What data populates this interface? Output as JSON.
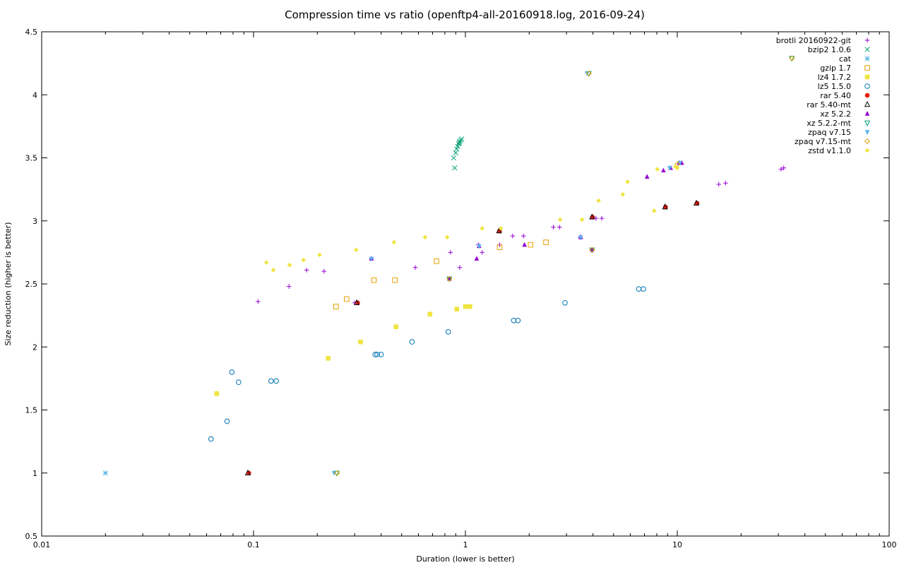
{
  "chart_data": {
    "type": "scatter",
    "title": "Compression time vs ratio (openftp4-all-20160918.log, 2016-09-24)",
    "xlabel": "Duration (lower is better)",
    "ylabel": "Size reduction (higher is better)",
    "x_scale": "log",
    "xlim": [
      0.01,
      100
    ],
    "ylim": [
      0.5,
      4.5
    ],
    "x_ticks": [
      {
        "value": 0.01,
        "label": "0.01"
      },
      {
        "value": 0.1,
        "label": "0.1"
      },
      {
        "value": 1,
        "label": "1"
      },
      {
        "value": 10,
        "label": "10"
      },
      {
        "value": 100,
        "label": "100"
      }
    ],
    "y_ticks": [
      {
        "value": 0.5,
        "label": "0.5"
      },
      {
        "value": 1,
        "label": "1"
      },
      {
        "value": 1.5,
        "label": "1.5"
      },
      {
        "value": 2,
        "label": "2"
      },
      {
        "value": 2.5,
        "label": "2.5"
      },
      {
        "value": 3,
        "label": "3"
      },
      {
        "value": 3.5,
        "label": "3.5"
      },
      {
        "value": 4,
        "label": "4"
      },
      {
        "value": 4.5,
        "label": "4.5"
      }
    ],
    "grid": false,
    "legend_position": "top-right",
    "series": [
      {
        "name": "brotli 20160922-git",
        "marker": "plus",
        "color": "#9400d3",
        "points": [
          [
            0.105,
            2.36
          ],
          [
            0.147,
            2.48
          ],
          [
            0.178,
            2.61
          ],
          [
            0.215,
            2.6
          ],
          [
            0.3,
            2.35
          ],
          [
            0.58,
            2.63
          ],
          [
            0.85,
            2.75
          ],
          [
            0.94,
            2.63
          ],
          [
            1.2,
            2.75
          ],
          [
            1.45,
            2.81
          ],
          [
            1.67,
            2.88
          ],
          [
            1.88,
            2.88
          ],
          [
            2.6,
            2.95
          ],
          [
            2.78,
            2.95
          ],
          [
            4.13,
            3.02
          ],
          [
            4.4,
            3.02
          ],
          [
            15.7,
            3.29
          ],
          [
            16.9,
            3.3
          ],
          [
            30.9,
            3.41
          ],
          [
            31.8,
            3.42
          ],
          [
            0.36,
            2.7
          ],
          [
            1.15,
            2.81
          ],
          [
            3.48,
            2.87
          ]
        ]
      },
      {
        "name": "bzip2 1.0.6",
        "marker": "x",
        "color": "#009e73",
        "points": [
          [
            0.89,
            3.42
          ],
          [
            0.88,
            3.5
          ],
          [
            0.9,
            3.54
          ],
          [
            0.91,
            3.57
          ],
          [
            0.92,
            3.59
          ],
          [
            0.93,
            3.61
          ],
          [
            0.935,
            3.62
          ],
          [
            0.94,
            3.63
          ],
          [
            0.95,
            3.64
          ],
          [
            0.96,
            3.65
          ]
        ]
      },
      {
        "name": "cat",
        "marker": "asterisk",
        "color": "#56b4e9",
        "points": [
          [
            0.02,
            1.0
          ]
        ]
      },
      {
        "name": "gzip 1.7",
        "marker": "open-square",
        "color": "#e69f00",
        "points": [
          [
            0.245,
            2.32
          ],
          [
            0.275,
            2.38
          ],
          [
            0.37,
            2.53
          ],
          [
            0.465,
            2.53
          ],
          [
            0.73,
            2.68
          ],
          [
            1.45,
            2.79
          ],
          [
            2.03,
            2.81
          ],
          [
            2.4,
            2.83
          ]
        ]
      },
      {
        "name": "lz4 1.7.2",
        "marker": "filled-square",
        "color": "#f0e442",
        "points": [
          [
            0.067,
            1.63
          ],
          [
            0.225,
            1.91
          ],
          [
            0.32,
            2.04
          ],
          [
            0.47,
            2.16
          ],
          [
            0.68,
            2.26
          ],
          [
            0.91,
            2.3
          ],
          [
            1.0,
            2.32
          ],
          [
            1.05,
            2.32
          ]
        ]
      },
      {
        "name": "lz5 1.5.0",
        "marker": "open-circle",
        "color": "#0072b2",
        "points": [
          [
            0.063,
            1.27
          ],
          [
            0.075,
            1.41
          ],
          [
            0.079,
            1.8
          ],
          [
            0.085,
            1.72
          ],
          [
            0.121,
            1.73
          ],
          [
            0.128,
            1.73
          ],
          [
            0.375,
            1.94
          ],
          [
            0.383,
            1.94
          ],
          [
            0.4,
            1.94
          ],
          [
            0.56,
            2.04
          ],
          [
            0.83,
            2.12
          ],
          [
            1.69,
            2.21
          ],
          [
            1.77,
            2.21
          ],
          [
            2.95,
            2.35
          ],
          [
            6.58,
            2.46
          ],
          [
            6.92,
            2.46
          ]
        ]
      },
      {
        "name": "rar 5.40",
        "marker": "filled-circle",
        "color": "#e51e10",
        "points": [
          [
            0.095,
            1.0
          ],
          [
            0.31,
            2.35
          ],
          [
            1.45,
            2.92
          ],
          [
            3.98,
            3.03
          ],
          [
            8.8,
            3.11
          ],
          [
            12.4,
            3.14
          ]
        ]
      },
      {
        "name": "rar 5.40-mt",
        "marker": "open-triangle",
        "color": "#000000",
        "points": [
          [
            0.094,
            1.0
          ],
          [
            0.307,
            2.35
          ],
          [
            1.44,
            2.92
          ],
          [
            3.96,
            3.03
          ],
          [
            8.75,
            3.11
          ],
          [
            12.3,
            3.14
          ]
        ]
      },
      {
        "name": "xz 5.2.2",
        "marker": "filled-triangle",
        "color": "#9400d3",
        "points": [
          [
            0.36,
            2.7
          ],
          [
            0.84,
            2.54
          ],
          [
            1.13,
            2.7
          ],
          [
            1.16,
            2.8
          ],
          [
            1.9,
            2.81
          ],
          [
            3.5,
            2.87
          ],
          [
            3.96,
            2.77
          ],
          [
            7.2,
            3.35
          ],
          [
            8.6,
            3.4
          ],
          [
            9.3,
            3.42
          ],
          [
            10.2,
            3.46
          ],
          [
            10.5,
            3.46
          ]
        ]
      },
      {
        "name": "xz 5.2.2-mt",
        "marker": "open-down-triangle",
        "color": "#009e73",
        "points": [
          [
            0.247,
            1.0
          ],
          [
            0.84,
            2.54
          ],
          [
            3.96,
            2.77
          ],
          [
            3.82,
            4.17
          ],
          [
            34.7,
            4.29
          ]
        ]
      },
      {
        "name": "zpaq v7.15",
        "marker": "filled-down-triangle",
        "color": "#56b4e9",
        "points": [
          [
            0.24,
            1.0
          ],
          [
            0.36,
            2.7
          ],
          [
            1.16,
            2.8
          ],
          [
            3.5,
            2.87
          ],
          [
            3.75,
            4.17
          ],
          [
            10.3,
            3.46
          ],
          [
            9.2,
            3.42
          ]
        ]
      },
      {
        "name": "zpaq v7.15-mt",
        "marker": "open-diamond",
        "color": "#e69f00",
        "points": [
          [
            0.248,
            1.0
          ],
          [
            0.84,
            2.54
          ],
          [
            3.96,
            2.77
          ],
          [
            3.83,
            4.17
          ],
          [
            34.8,
            4.29
          ],
          [
            10.0,
            3.45
          ]
        ]
      },
      {
        "name": "zstd v1.1.0",
        "marker": "filled-diamond",
        "color": "#f0e442",
        "points": [
          [
            0.115,
            2.67
          ],
          [
            0.124,
            2.61
          ],
          [
            0.148,
            2.65
          ],
          [
            0.172,
            2.69
          ],
          [
            0.205,
            2.73
          ],
          [
            0.305,
            2.77
          ],
          [
            0.46,
            2.83
          ],
          [
            0.645,
            2.87
          ],
          [
            0.82,
            2.87
          ],
          [
            1.2,
            2.94
          ],
          [
            1.47,
            2.94
          ],
          [
            2.8,
            3.01
          ],
          [
            3.55,
            3.01
          ],
          [
            4.25,
            3.16
          ],
          [
            5.53,
            3.21
          ],
          [
            5.82,
            3.31
          ],
          [
            7.78,
            3.08
          ],
          [
            8.05,
            3.41
          ],
          [
            9.8,
            3.43
          ],
          [
            10.0,
            3.42
          ]
        ]
      }
    ]
  }
}
